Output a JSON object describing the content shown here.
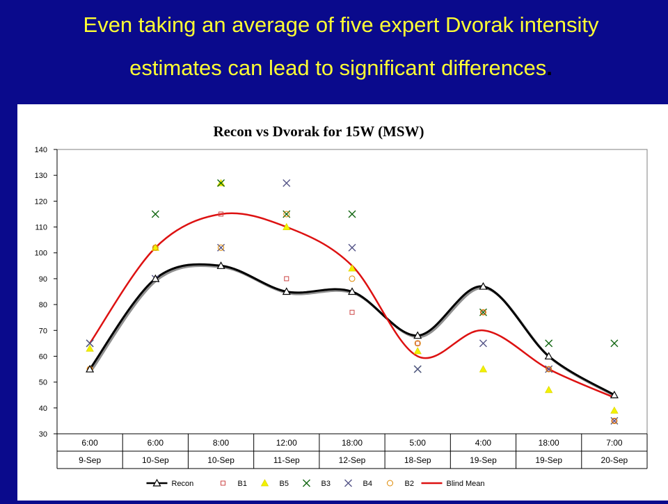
{
  "slide": {
    "title_line1": "Even taking an average of five expert Dvorak intensity",
    "title_line2": "estimates can lead to significant differences",
    "title_period": "."
  },
  "colors": {
    "background": "#0a0a8c",
    "title": "#ffff33",
    "recon": "#000000",
    "b1": "#cc4444",
    "b5": "#f2f200",
    "b3": "#116611",
    "b4": "#555588",
    "b2": "#dd8800",
    "blind_mean": "#dd1111"
  },
  "chart_data": {
    "type": "line",
    "title": "Recon vs Dvorak for 15W (MSW)",
    "xlabel": "",
    "ylabel": "",
    "ylim": [
      30,
      140
    ],
    "yticks": [
      30,
      40,
      50,
      60,
      70,
      80,
      90,
      100,
      110,
      120,
      130,
      140
    ],
    "categories_time": [
      "6:00",
      "6:00",
      "8:00",
      "12:00",
      "18:00",
      "5:00",
      "4:00",
      "18:00",
      "7:00"
    ],
    "categories_date": [
      "9-Sep",
      "10-Sep",
      "10-Sep",
      "11-Sep",
      "12-Sep",
      "18-Sep",
      "19-Sep",
      "19-Sep",
      "20-Sep"
    ],
    "legend_position": "bottom",
    "series": [
      {
        "name": "Recon",
        "marker": "triangle-open",
        "line": true,
        "color": "#000000",
        "values": [
          55,
          90,
          95,
          85,
          85,
          68,
          87,
          60,
          45
        ]
      },
      {
        "name": "B1",
        "marker": "square-open",
        "line": false,
        "color": "#cc4444",
        "values": [
          55,
          102,
          115,
          90,
          77,
          65,
          77,
          55,
          35
        ]
      },
      {
        "name": "B5",
        "marker": "triangle-filled",
        "line": false,
        "color": "#f2f200",
        "values": [
          63,
          102,
          127,
          110,
          94,
          62,
          55,
          47,
          39
        ]
      },
      {
        "name": "B3",
        "marker": "x",
        "line": false,
        "color": "#116611",
        "values": [
          65,
          115,
          127,
          115,
          115,
          55,
          77,
          65,
          65
        ]
      },
      {
        "name": "B4",
        "marker": "x",
        "line": false,
        "color": "#555588",
        "values": [
          65,
          90,
          102,
          127,
          102,
          55,
          65,
          55,
          35
        ]
      },
      {
        "name": "B2",
        "marker": "circle-open",
        "line": false,
        "color": "#dd8800",
        "values": [
          55,
          102,
          102,
          115,
          90,
          65,
          77,
          55,
          35
        ]
      },
      {
        "name": "Blind Mean",
        "marker": "none",
        "line": true,
        "color": "#dd1111",
        "values": [
          65,
          102,
          115,
          110,
          95,
          60,
          70,
          55,
          44
        ]
      }
    ]
  }
}
